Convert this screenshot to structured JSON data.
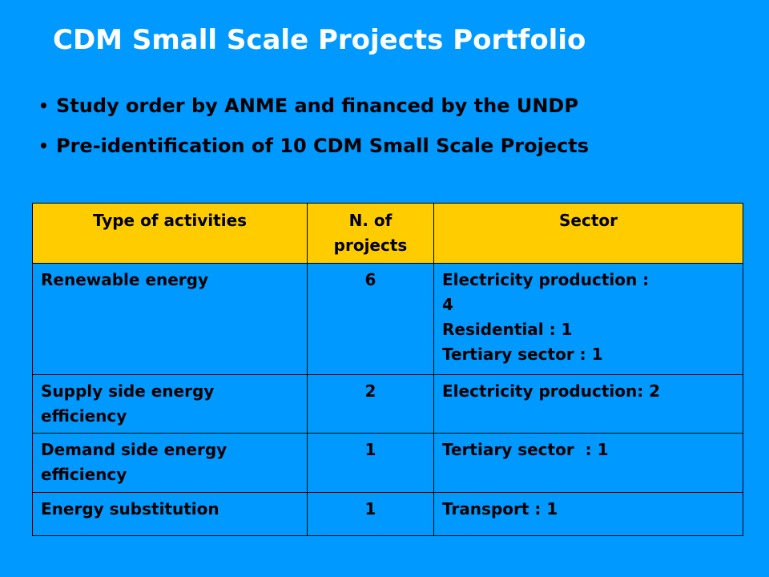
{
  "slide": {
    "title": "CDM Small Scale Projects Portfolio",
    "bullets": [
      "Study order by ANME and financed by the UNDP",
      "Pre-identification of 10 CDM Small Scale Projects"
    ]
  },
  "table": {
    "headers": {
      "type": "Type of activities",
      "count_line1": "N. of",
      "count_line2": "projects",
      "sector": "Sector"
    },
    "rows": [
      {
        "type": "Renewable energy",
        "count": "6",
        "sector_lines": [
          "Electricity production :",
          "4",
          "Residential : 1",
          "Tertiary sector : 1"
        ]
      },
      {
        "type": "Supply side energy efficiency",
        "count": "2",
        "sector_lines": [
          "Electricity production: 2"
        ]
      },
      {
        "type": "Demand side energy efficiency",
        "count": "1",
        "sector_lines": [
          "Tertiary sector  : 1"
        ]
      },
      {
        "type": "Energy substitution",
        "count": "1",
        "sector_lines": [
          "Transport : 1"
        ]
      }
    ]
  }
}
